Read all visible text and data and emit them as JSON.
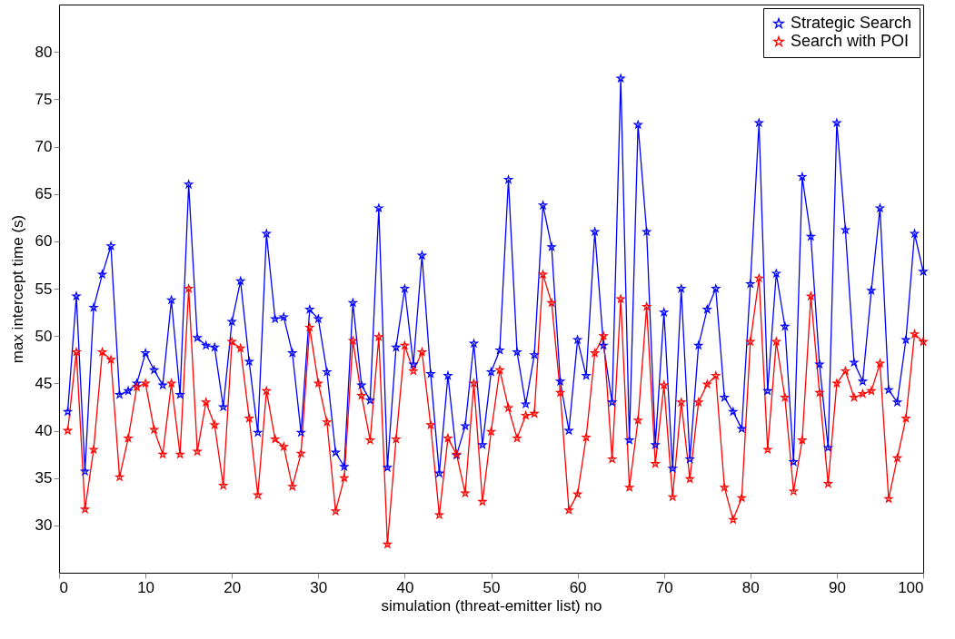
{
  "chart_data": {
    "type": "line",
    "xlabel": "simulation (threat-emitter list) no",
    "ylabel": "max intercept time (s)",
    "x": [
      1,
      2,
      3,
      4,
      5,
      6,
      7,
      8,
      9,
      10,
      11,
      12,
      13,
      14,
      15,
      16,
      17,
      18,
      19,
      20,
      21,
      22,
      23,
      24,
      25,
      26,
      27,
      28,
      29,
      30,
      31,
      32,
      33,
      34,
      35,
      36,
      37,
      38,
      39,
      40,
      41,
      42,
      43,
      44,
      45,
      46,
      47,
      48,
      49,
      50,
      51,
      52,
      53,
      54,
      55,
      56,
      57,
      58,
      59,
      60,
      61,
      62,
      63,
      64,
      65,
      66,
      67,
      68,
      69,
      70,
      71,
      72,
      73,
      74,
      75,
      76,
      77,
      78,
      79,
      80,
      81,
      82,
      83,
      84,
      85,
      86,
      87,
      88,
      89,
      90,
      91,
      92,
      93,
      94,
      95,
      96,
      97,
      98,
      99,
      100
    ],
    "series": [
      {
        "name": "Strategic Search",
        "color": "#0000ff",
        "values": [
          42,
          54.2,
          35.7,
          53,
          56.5,
          59.5,
          43.8,
          44.2,
          45,
          48.2,
          46.4,
          44.8,
          53.8,
          43.8,
          66,
          49.8,
          49,
          48.8,
          42.5,
          51.5,
          55.8,
          47.3,
          39.8,
          60.8,
          51.8,
          52,
          48.2,
          39.8,
          52.8,
          51.8,
          46.2,
          37.7,
          36.2,
          53.5,
          44.8,
          43.2,
          63.5,
          36.1,
          48.8,
          55,
          47,
          58.5,
          46,
          35.5,
          45.8,
          37.4,
          40.5,
          49.2,
          38.5,
          46.2,
          48.5,
          66.5,
          48.3,
          42.8,
          48,
          63.8,
          59.4,
          45.2,
          40,
          49.6,
          45.8,
          61,
          49,
          43,
          77.2,
          39,
          72.3,
          61,
          38.5,
          52.5,
          36,
          55,
          37,
          49,
          52.8,
          55,
          43.5,
          42,
          40.2,
          55.5,
          72.5,
          44.2,
          56.6,
          51,
          36.7,
          66.8,
          60.5,
          47,
          38.2,
          72.5,
          61.2,
          47.2,
          45.2,
          54.8,
          63.5,
          44.3,
          43,
          49.6,
          60.8,
          56.8
        ]
      },
      {
        "name": "Search with POI",
        "color": "#ff0000",
        "values": [
          40,
          48.3,
          31.7,
          38,
          48.3,
          47.5,
          35.1,
          39.2,
          44.6,
          45,
          40.1,
          37.5,
          45,
          37.5,
          55,
          37.8,
          43,
          40.6,
          34.2,
          49.4,
          48.7,
          41.3,
          33.2,
          44.2,
          39.1,
          38.3,
          34.1,
          37.6,
          50.9,
          45,
          40.9,
          31.5,
          35,
          49.5,
          43.7,
          39,
          49.9,
          28,
          39.1,
          49,
          46.3,
          48.3,
          40.6,
          31.1,
          39.2,
          37.5,
          33.4,
          45,
          32.5,
          39.9,
          46.4,
          42.4,
          39.2,
          41.6,
          41.8,
          56.5,
          53.5,
          44,
          31.6,
          33.3,
          39.3,
          48.2,
          50,
          37,
          53.9,
          34,
          41.1,
          53.1,
          36.5,
          44.8,
          33,
          43,
          34.9,
          43,
          44.9,
          45.8,
          34,
          30.6,
          32.9,
          49.4,
          56.1,
          38,
          49.4,
          43.5,
          33.6,
          39,
          54.2,
          44,
          34.4,
          45,
          46.3,
          43.5,
          43.9,
          44.2,
          47.1,
          32.8,
          37.1,
          41.3,
          50.2,
          49.4
        ]
      }
    ],
    "xlim": [
      0,
      100
    ],
    "xticks": [
      0,
      10,
      20,
      30,
      40,
      50,
      60,
      70,
      80,
      90,
      100
    ],
    "ylim": [
      25,
      85
    ],
    "yticks": [
      30,
      35,
      40,
      45,
      50,
      55,
      60,
      65,
      70,
      75,
      80
    ],
    "marker": "star",
    "legend": "top right",
    "grid": false
  }
}
